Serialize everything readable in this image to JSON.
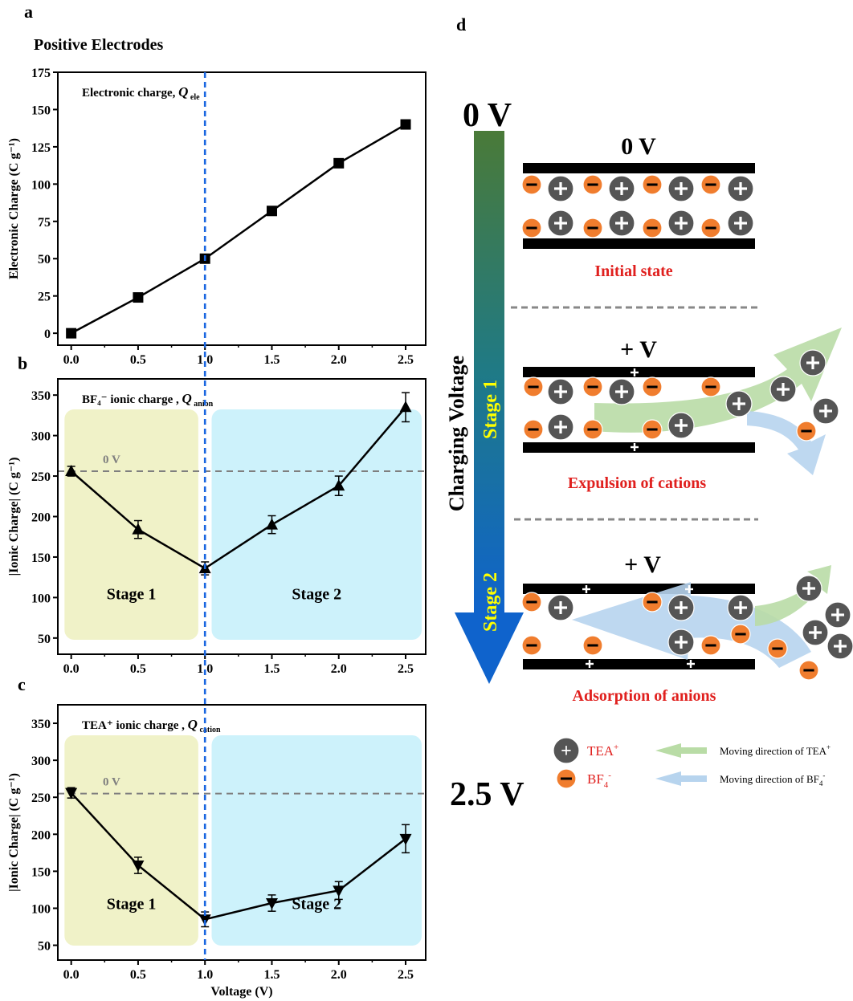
{
  "panel_labels": {
    "a": "a",
    "b": "b",
    "c": "c",
    "d": "d"
  },
  "header": "Positive  Electrodes",
  "chart_data": [
    {
      "type": "line",
      "title_prefix": "Electronic charge, ",
      "title_symbol": "Q",
      "title_sub": "ele",
      "ylabel": "Electronic Charge (C g⁻¹)",
      "xlabel": "",
      "x": [
        0.0,
        0.5,
        1.0,
        1.5,
        2.0,
        2.5
      ],
      "series": [
        {
          "values": [
            0,
            24,
            50,
            82,
            114,
            140
          ],
          "marker": "square"
        }
      ],
      "xlim": [
        -0.1,
        2.65
      ],
      "ylim": [
        -8,
        175
      ],
      "xticks": [
        "0.0",
        "0.5",
        "1.0",
        "1.5",
        "2.0",
        "2.5"
      ],
      "yticks": [
        0,
        25,
        50,
        75,
        100,
        125,
        150,
        175
      ]
    },
    {
      "type": "line",
      "title_prefix": "BF₄⁻ ionic charge , ",
      "title_symbol": "Q",
      "title_sub": "anion",
      "ylabel": "|Ionic Charge| (C g⁻¹)",
      "xlabel": "",
      "x": [
        0.0,
        0.5,
        1.0,
        1.5,
        2.0,
        2.5
      ],
      "series": [
        {
          "values": [
            256,
            184,
            136,
            190,
            238,
            335
          ],
          "errors": [
            6,
            11,
            8,
            11,
            12,
            18
          ],
          "marker": "triangle-up"
        }
      ],
      "reference_line": {
        "value": 256,
        "label": "0 V"
      },
      "stages": [
        {
          "label": "Stage 1",
          "from": -0.05,
          "to": 0.95,
          "color": "#f0f2c8"
        },
        {
          "label": "Stage 2",
          "from": 1.05,
          "to": 2.62,
          "color": "#cdf2fb"
        }
      ],
      "xlim": [
        -0.1,
        2.65
      ],
      "ylim": [
        30,
        370
      ],
      "xticks": [
        "0.0",
        "0.5",
        "1.0",
        "1.5",
        "2.0",
        "2.5"
      ],
      "yticks": [
        50,
        100,
        150,
        200,
        250,
        300,
        350
      ]
    },
    {
      "type": "line",
      "title_prefix": "TEA⁺ ionic charge , ",
      "title_symbol": "Q",
      "title_sub": "cation",
      "ylabel": "|Ionic Charge| (C g⁻¹)",
      "xlabel": "Voltage (V)",
      "x": [
        0.0,
        0.5,
        1.0,
        1.5,
        2.0,
        2.5
      ],
      "series": [
        {
          "values": [
            256,
            158,
            85,
            107,
            124,
            194
          ],
          "errors": [
            7,
            11,
            10,
            11,
            12,
            19
          ],
          "marker": "triangle-down"
        }
      ],
      "reference_line": {
        "value": 255,
        "label": "0 V"
      },
      "stages": [
        {
          "label": "Stage 1",
          "from": -0.05,
          "to": 0.95,
          "color": "#f0f2c8"
        },
        {
          "label": "Stage 2",
          "from": 1.05,
          "to": 2.62,
          "color": "#cdf2fb"
        }
      ],
      "xlim": [
        -0.1,
        2.65
      ],
      "ylim": [
        30,
        375
      ],
      "xticks": [
        "0.0",
        "0.5",
        "1.0",
        "1.5",
        "2.0",
        "2.5"
      ],
      "yticks": [
        50,
        100,
        150,
        200,
        250,
        300,
        350
      ]
    }
  ],
  "schematic": {
    "voltage_top": "0 V",
    "voltage_bottom": "2.5 V",
    "axis_title": "Charging Voltage",
    "stage1": "Stage 1",
    "stage2": "Stage 2",
    "states": [
      {
        "voltage": "0 V",
        "caption": "Initial state"
      },
      {
        "voltage": "+ V",
        "caption": "Expulsion  of cations"
      },
      {
        "voltage": "+ V",
        "caption": "Adsorption of anions"
      }
    ],
    "legend": {
      "cation": "TEA",
      "cation_sup": "+",
      "anion": "BF",
      "anion_sub": "4",
      "anion_sup": "-",
      "cation_dir_prefix": "Moving direction of TEA",
      "cation_dir_sup": "+",
      "anion_dir_prefix": "Moving direction of BF",
      "anion_dir_sub": "4",
      "anion_dir_sup": "-"
    },
    "colors": {
      "cation": "#555555",
      "anion": "#f07d2e",
      "cation_arrow": "#b9dca6",
      "anion_arrow": "#b7d4ee",
      "caption": "#e0201e",
      "stage_text": "#ffff00"
    }
  }
}
